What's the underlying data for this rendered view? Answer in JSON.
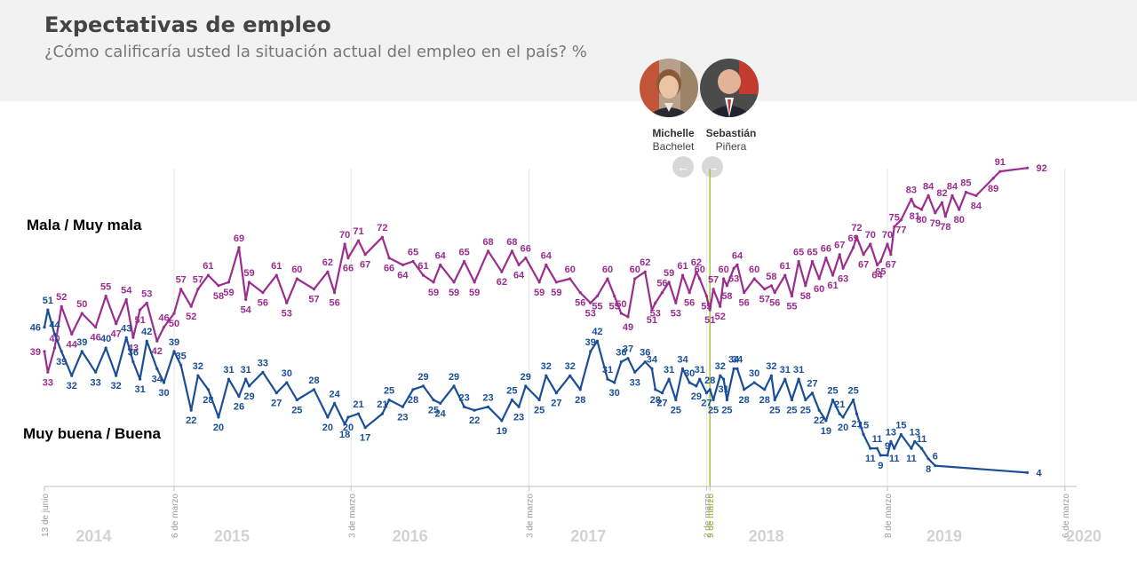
{
  "header": {
    "title": "Expectativas de empleo",
    "subtitle": "¿Cómo calificaría usted la situación actual del empleo en el país? %"
  },
  "presidents": [
    {
      "first": "Michelle",
      "last": "Bachelet"
    },
    {
      "first": "Sebastián",
      "last": "Piñera"
    }
  ],
  "nav": {
    "prev_icon": "arrow-left-icon",
    "next_icon": "arrow-right-icon"
  },
  "colors": {
    "mala": "#9b2d8e",
    "buena": "#1a4e96",
    "highlight": "#a5c63b",
    "year_label": "#d3d3d3"
  },
  "chart_data": {
    "type": "line",
    "title": "Expectativas de empleo",
    "x_axis": {
      "range": [
        "2014-06-13",
        "2020-03-30"
      ],
      "years": [
        "2014",
        "2015",
        "2016",
        "2017",
        "2018",
        "2019",
        "2020"
      ],
      "date_labels": [
        {
          "date": "2014-06-13",
          "label": "13 de junio"
        },
        {
          "date": "2015-03-06",
          "label": "6 de marzo"
        },
        {
          "date": "2016-03-03",
          "label": "3 de marzo"
        },
        {
          "date": "2017-03-03",
          "label": "3 de marzo"
        },
        {
          "date": "2018-03-02",
          "label": "2 de marzo"
        },
        {
          "date": "2018-03-09",
          "label": "9 de marzo",
          "highlight": true
        },
        {
          "date": "2019-03-08",
          "label": "8 de marzo"
        },
        {
          "date": "2020-03-06",
          "label": "6 de marzo"
        }
      ]
    },
    "ylim": [
      0,
      100
    ],
    "grid": false,
    "series": [
      {
        "name": "Mala / Muy mala",
        "points": [
          [
            "2014-06-13",
            39
          ],
          [
            "2014-06-20",
            33
          ],
          [
            "2014-07-04",
            40
          ],
          [
            "2014-07-18",
            52
          ],
          [
            "2014-08-08",
            44
          ],
          [
            "2014-08-29",
            50
          ],
          [
            "2014-09-26",
            46
          ],
          [
            "2014-10-17",
            55
          ],
          [
            "2014-11-07",
            47
          ],
          [
            "2014-11-28",
            54
          ],
          [
            "2014-12-12",
            43
          ],
          [
            "2014-12-26",
            51
          ],
          [
            "2015-01-09",
            53
          ],
          [
            "2015-01-30",
            42
          ],
          [
            "2015-02-13",
            46
          ],
          [
            "2015-03-06",
            50
          ],
          [
            "2015-03-20",
            57
          ],
          [
            "2015-04-10",
            52
          ],
          [
            "2015-04-24",
            57
          ],
          [
            "2015-05-15",
            61
          ],
          [
            "2015-06-05",
            58
          ],
          [
            "2015-06-26",
            59
          ],
          [
            "2015-07-17",
            69
          ],
          [
            "2015-07-31",
            54
          ],
          [
            "2015-08-07",
            59
          ],
          [
            "2015-09-04",
            56
          ],
          [
            "2015-10-02",
            61
          ],
          [
            "2015-10-23",
            53
          ],
          [
            "2015-11-13",
            60
          ],
          [
            "2015-12-18",
            57
          ],
          [
            "2016-01-15",
            62
          ],
          [
            "2016-01-29",
            56
          ],
          [
            "2016-02-19",
            70
          ],
          [
            "2016-02-26",
            66
          ],
          [
            "2016-03-18",
            71
          ],
          [
            "2016-04-01",
            67
          ],
          [
            "2016-05-06",
            72
          ],
          [
            "2016-05-20",
            66
          ],
          [
            "2016-06-17",
            64
          ],
          [
            "2016-07-08",
            65
          ],
          [
            "2016-07-29",
            61
          ],
          [
            "2016-08-19",
            59
          ],
          [
            "2016-09-02",
            64
          ],
          [
            "2016-09-30",
            59
          ],
          [
            "2016-10-21",
            65
          ],
          [
            "2016-11-11",
            59
          ],
          [
            "2016-12-09",
            68
          ],
          [
            "2017-01-06",
            62
          ],
          [
            "2017-01-27",
            68
          ],
          [
            "2017-02-10",
            64
          ],
          [
            "2017-02-24",
            66
          ],
          [
            "2017-03-24",
            59
          ],
          [
            "2017-04-07",
            64
          ],
          [
            "2017-04-28",
            59
          ],
          [
            "2017-05-26",
            60
          ],
          [
            "2017-06-16",
            56
          ],
          [
            "2017-07-07",
            53
          ],
          [
            "2017-07-21",
            55
          ],
          [
            "2017-08-11",
            60
          ],
          [
            "2017-08-25",
            55
          ],
          [
            "2017-09-08",
            50
          ],
          [
            "2017-09-22",
            49
          ],
          [
            "2017-10-06",
            60
          ],
          [
            "2017-10-27",
            62
          ],
          [
            "2017-11-10",
            51
          ],
          [
            "2017-11-17",
            53
          ],
          [
            "2017-12-01",
            56
          ],
          [
            "2017-12-15",
            59
          ],
          [
            "2017-12-29",
            53
          ],
          [
            "2018-01-12",
            61
          ],
          [
            "2018-01-26",
            56
          ],
          [
            "2018-02-09",
            62
          ],
          [
            "2018-02-16",
            60
          ],
          [
            "2018-03-02",
            55
          ],
          [
            "2018-03-09",
            51
          ],
          [
            "2018-03-16",
            57
          ],
          [
            "2018-03-30",
            52
          ],
          [
            "2018-04-06",
            60
          ],
          [
            "2018-04-13",
            58
          ],
          [
            "2018-04-27",
            63
          ],
          [
            "2018-05-04",
            64
          ],
          [
            "2018-05-18",
            56
          ],
          [
            "2018-06-08",
            60
          ],
          [
            "2018-06-29",
            57
          ],
          [
            "2018-07-13",
            58
          ],
          [
            "2018-07-20",
            56
          ],
          [
            "2018-08-10",
            61
          ],
          [
            "2018-08-24",
            55
          ],
          [
            "2018-09-07",
            65
          ],
          [
            "2018-09-21",
            58
          ],
          [
            "2018-10-05",
            65
          ],
          [
            "2018-10-19",
            60
          ],
          [
            "2018-11-02",
            66
          ],
          [
            "2018-11-16",
            61
          ],
          [
            "2018-11-30",
            67
          ],
          [
            "2018-12-07",
            63
          ],
          [
            "2018-12-28",
            69
          ],
          [
            "2019-01-04",
            72
          ],
          [
            "2019-01-18",
            67
          ],
          [
            "2019-02-01",
            70
          ],
          [
            "2019-02-15",
            64
          ],
          [
            "2019-02-22",
            65
          ],
          [
            "2019-03-08",
            70
          ],
          [
            "2019-03-15",
            67
          ],
          [
            "2019-03-22",
            75
          ],
          [
            "2019-04-05",
            77
          ],
          [
            "2019-04-26",
            83
          ],
          [
            "2019-05-03",
            81
          ],
          [
            "2019-05-17",
            80
          ],
          [
            "2019-05-31",
            84
          ],
          [
            "2019-06-14",
            79
          ],
          [
            "2019-06-28",
            82
          ],
          [
            "2019-07-05",
            78
          ],
          [
            "2019-07-19",
            84
          ],
          [
            "2019-08-02",
            80
          ],
          [
            "2019-08-16",
            85
          ],
          [
            "2019-09-06",
            84
          ],
          [
            "2019-10-11",
            89
          ],
          [
            "2019-10-25",
            91
          ],
          [
            "2019-12-20",
            92
          ]
        ]
      },
      {
        "name": "Muy buena / Buena",
        "points": [
          [
            "2014-06-13",
            46
          ],
          [
            "2014-06-20",
            51
          ],
          [
            "2014-07-04",
            44
          ],
          [
            "2014-07-18",
            39
          ],
          [
            "2014-08-08",
            32
          ],
          [
            "2014-08-29",
            39
          ],
          [
            "2014-09-26",
            33
          ],
          [
            "2014-10-17",
            40
          ],
          [
            "2014-11-07",
            32
          ],
          [
            "2014-11-28",
            43
          ],
          [
            "2014-12-12",
            36
          ],
          [
            "2014-12-26",
            31
          ],
          [
            "2015-01-09",
            42
          ],
          [
            "2015-01-30",
            34
          ],
          [
            "2015-02-13",
            30
          ],
          [
            "2015-03-06",
            39
          ],
          [
            "2015-03-20",
            35
          ],
          [
            "2015-04-10",
            22
          ],
          [
            "2015-04-24",
            32
          ],
          [
            "2015-05-15",
            28
          ],
          [
            "2015-06-05",
            20
          ],
          [
            "2015-06-26",
            31
          ],
          [
            "2015-07-17",
            26
          ],
          [
            "2015-07-31",
            31
          ],
          [
            "2015-08-07",
            29
          ],
          [
            "2015-09-04",
            33
          ],
          [
            "2015-10-02",
            27
          ],
          [
            "2015-10-23",
            30
          ],
          [
            "2015-11-13",
            25
          ],
          [
            "2015-12-18",
            28
          ],
          [
            "2016-01-15",
            20
          ],
          [
            "2016-01-29",
            24
          ],
          [
            "2016-02-19",
            18
          ],
          [
            "2016-02-26",
            20
          ],
          [
            "2016-03-18",
            21
          ],
          [
            "2016-04-01",
            17
          ],
          [
            "2016-05-06",
            21
          ],
          [
            "2016-05-20",
            25
          ],
          [
            "2016-06-17",
            23
          ],
          [
            "2016-07-08",
            28
          ],
          [
            "2016-07-29",
            29
          ],
          [
            "2016-08-19",
            25
          ],
          [
            "2016-09-02",
            24
          ],
          [
            "2016-09-30",
            29
          ],
          [
            "2016-10-21",
            23
          ],
          [
            "2016-11-11",
            22
          ],
          [
            "2016-12-09",
            23
          ],
          [
            "2017-01-06",
            19
          ],
          [
            "2017-01-27",
            25
          ],
          [
            "2017-02-10",
            23
          ],
          [
            "2017-02-24",
            29
          ],
          [
            "2017-03-24",
            25
          ],
          [
            "2017-04-07",
            32
          ],
          [
            "2017-04-28",
            27
          ],
          [
            "2017-05-26",
            32
          ],
          [
            "2017-06-16",
            28
          ],
          [
            "2017-07-07",
            39
          ],
          [
            "2017-07-21",
            42
          ],
          [
            "2017-08-11",
            31
          ],
          [
            "2017-08-25",
            30
          ],
          [
            "2017-09-08",
            36
          ],
          [
            "2017-09-22",
            37
          ],
          [
            "2017-10-06",
            33
          ],
          [
            "2017-10-27",
            36
          ],
          [
            "2017-11-10",
            34
          ],
          [
            "2017-11-17",
            28
          ],
          [
            "2017-12-01",
            27
          ],
          [
            "2017-12-15",
            31
          ],
          [
            "2017-12-29",
            25
          ],
          [
            "2018-01-12",
            34
          ],
          [
            "2018-01-26",
            30
          ],
          [
            "2018-02-09",
            29
          ],
          [
            "2018-02-16",
            31
          ],
          [
            "2018-03-02",
            27
          ],
          [
            "2018-03-09",
            28
          ],
          [
            "2018-03-16",
            25
          ],
          [
            "2018-03-30",
            32
          ],
          [
            "2018-04-06",
            31
          ],
          [
            "2018-04-13",
            25
          ],
          [
            "2018-04-27",
            34
          ],
          [
            "2018-05-04",
            34
          ],
          [
            "2018-05-18",
            28
          ],
          [
            "2018-06-08",
            30
          ],
          [
            "2018-06-29",
            28
          ],
          [
            "2018-07-13",
            32
          ],
          [
            "2018-07-20",
            25
          ],
          [
            "2018-08-10",
            31
          ],
          [
            "2018-08-24",
            25
          ],
          [
            "2018-09-07",
            31
          ],
          [
            "2018-09-21",
            25
          ],
          [
            "2018-10-05",
            27
          ],
          [
            "2018-10-19",
            22
          ],
          [
            "2018-11-02",
            19
          ],
          [
            "2018-11-16",
            25
          ],
          [
            "2018-11-30",
            21
          ],
          [
            "2018-12-07",
            20
          ],
          [
            "2018-12-28",
            25
          ],
          [
            "2019-01-04",
            21
          ],
          [
            "2019-01-18",
            15
          ],
          [
            "2019-02-01",
            11
          ],
          [
            "2019-02-15",
            11
          ],
          [
            "2019-02-22",
            9
          ],
          [
            "2019-03-08",
            9
          ],
          [
            "2019-03-15",
            13
          ],
          [
            "2019-03-22",
            11
          ],
          [
            "2019-04-05",
            15
          ],
          [
            "2019-04-26",
            11
          ],
          [
            "2019-05-03",
            13
          ],
          [
            "2019-05-17",
            11
          ],
          [
            "2019-05-31",
            8
          ],
          [
            "2019-06-14",
            6
          ],
          [
            "2019-12-20",
            4
          ]
        ]
      }
    ]
  }
}
